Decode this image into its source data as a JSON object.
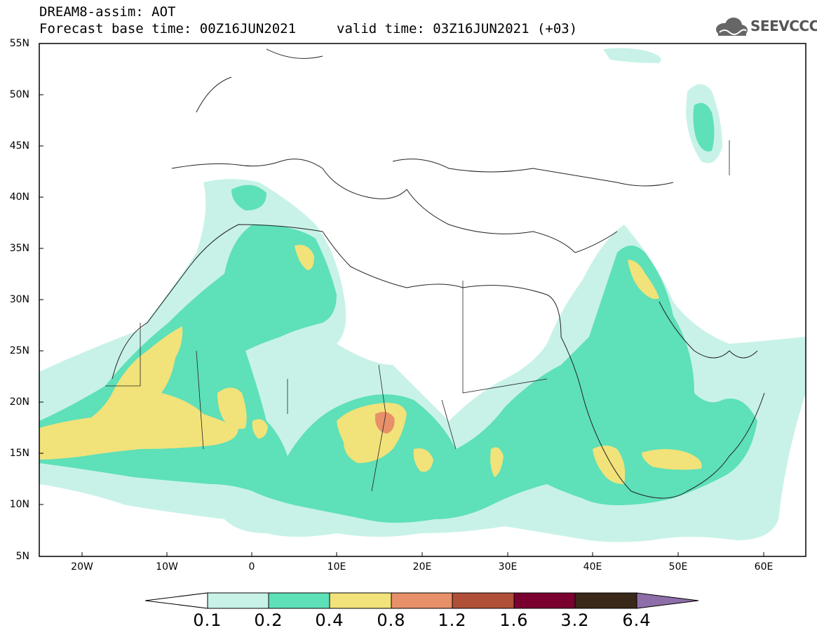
{
  "header": {
    "line1": "DREAM8-assim: AOT",
    "line2_left": "Forecast base time: 00Z16JUN2021",
    "line2_right": "valid time: 03Z16JUN2021 (+03)"
  },
  "logo": {
    "text": "SEEVCCC",
    "icon": "cloud-icon"
  },
  "map": {
    "lat_labels": [
      "55N",
      "50N",
      "45N",
      "40N",
      "35N",
      "30N",
      "25N",
      "20N",
      "15N",
      "10N",
      "5N"
    ],
    "lon_labels": [
      "20W",
      "10W",
      "0",
      "10E",
      "20E",
      "30E",
      "40E",
      "50E",
      "60E"
    ],
    "extent": {
      "lon_min": -25,
      "lon_max": 65,
      "lat_min": 5,
      "lat_max": 55
    },
    "field": "Aerosol optical thickness (dust)"
  },
  "colorbar": {
    "labels": [
      "0.1",
      "0.2",
      "0.4",
      "0.8",
      "1.2",
      "1.6",
      "3.2",
      "6.4"
    ],
    "colors": [
      "#ffffff",
      "#c8f2e8",
      "#5ee0b8",
      "#f2e27a",
      "#e8906a",
      "#b05038",
      "#7a0030",
      "#3a2818",
      "#8e6ea8"
    ]
  }
}
